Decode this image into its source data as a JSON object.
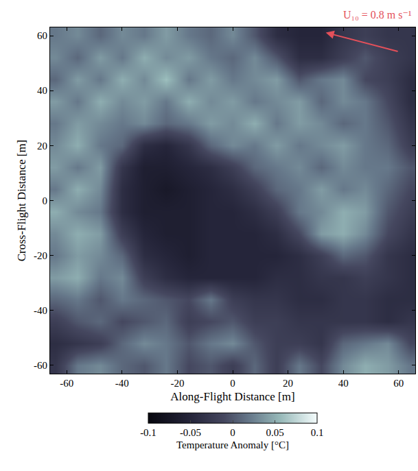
{
  "chart_data": {
    "type": "heatmap",
    "x_label": "Along-Flight Distance [m]",
    "y_label": "Cross-Flight Distance [m]",
    "annotation": "U₁₀ = 0.8 m s⁻¹",
    "annotation_color": "#e4505a",
    "xlim": [
      -66,
      66
    ],
    "ylim": [
      -63,
      63
    ],
    "xticks": [
      -60,
      -40,
      -20,
      0,
      20,
      40,
      60
    ],
    "yticks": [
      -60,
      -40,
      -20,
      0,
      20,
      40,
      60
    ],
    "x": [
      -64,
      -56,
      -48,
      -40,
      -32,
      -24,
      -16,
      -8,
      0,
      8,
      16,
      24,
      32,
      40,
      48,
      56,
      64
    ],
    "y": [
      -60,
      -52,
      -44,
      -36,
      -28,
      -20,
      -12,
      -4,
      4,
      12,
      20,
      28,
      36,
      44,
      52,
      60
    ],
    "z": [
      [
        -0.03,
        0.02,
        0.03,
        0.01,
        0.0,
        0.02,
        -0.01,
        0.0,
        -0.02,
        0.01,
        -0.02,
        0.02,
        -0.01,
        0.03,
        0.05,
        0.04,
        0.02
      ],
      [
        -0.04,
        -0.03,
        -0.02,
        0.01,
        0.03,
        0.02,
        0.0,
        0.02,
        0.03,
        0.0,
        -0.02,
        -0.02,
        -0.03,
        0.01,
        0.02,
        0.03,
        -0.01
      ],
      [
        -0.02,
        0.0,
        0.01,
        -0.01,
        0.0,
        0.01,
        -0.02,
        -0.01,
        0.0,
        -0.02,
        -0.02,
        -0.03,
        -0.03,
        -0.03,
        -0.03,
        -0.04,
        -0.03
      ],
      [
        0.01,
        0.02,
        0.0,
        0.02,
        0.01,
        0.0,
        -0.01,
        0.02,
        -0.02,
        -0.03,
        -0.03,
        -0.04,
        -0.04,
        -0.03,
        -0.03,
        -0.04,
        -0.04
      ],
      [
        0.04,
        0.05,
        0.02,
        0.03,
        -0.02,
        -0.04,
        -0.05,
        -0.05,
        -0.05,
        -0.05,
        -0.04,
        -0.04,
        -0.03,
        -0.03,
        -0.02,
        -0.03,
        -0.04
      ],
      [
        0.02,
        0.04,
        0.03,
        0.01,
        -0.04,
        -0.05,
        -0.06,
        -0.05,
        -0.05,
        -0.05,
        -0.05,
        -0.04,
        -0.02,
        0.01,
        0.0,
        -0.03,
        -0.04
      ],
      [
        0.03,
        0.05,
        0.04,
        -0.02,
        -0.05,
        -0.06,
        -0.06,
        -0.05,
        -0.05,
        -0.05,
        -0.04,
        -0.01,
        0.04,
        0.05,
        0.03,
        -0.01,
        -0.03
      ],
      [
        0.05,
        0.03,
        0.02,
        -0.04,
        -0.06,
        -0.06,
        -0.06,
        -0.05,
        -0.05,
        -0.04,
        -0.02,
        0.02,
        0.03,
        0.05,
        0.04,
        0.0,
        -0.02
      ],
      [
        0.02,
        0.05,
        0.03,
        -0.04,
        -0.06,
        -0.07,
        -0.06,
        -0.05,
        -0.04,
        -0.02,
        0.01,
        0.02,
        0.04,
        0.02,
        0.03,
        0.01,
        -0.01
      ],
      [
        0.04,
        0.02,
        0.04,
        -0.03,
        -0.06,
        -0.06,
        -0.05,
        -0.04,
        -0.02,
        0.01,
        0.02,
        0.03,
        0.01,
        0.03,
        0.02,
        0.02,
        0.0
      ],
      [
        0.03,
        0.05,
        0.02,
        0.01,
        -0.04,
        -0.05,
        -0.03,
        0.01,
        0.03,
        0.02,
        0.04,
        0.02,
        0.03,
        0.04,
        0.02,
        0.01,
        -0.02
      ],
      [
        0.02,
        0.04,
        0.03,
        0.02,
        0.03,
        0.01,
        0.02,
        0.04,
        0.03,
        0.05,
        0.02,
        0.04,
        0.03,
        0.01,
        0.02,
        0.0,
        -0.03
      ],
      [
        0.04,
        0.02,
        0.05,
        0.03,
        0.04,
        0.02,
        0.05,
        0.03,
        0.04,
        0.02,
        0.03,
        0.04,
        0.01,
        0.03,
        0.02,
        -0.01,
        -0.04
      ],
      [
        0.01,
        0.04,
        0.02,
        0.05,
        0.03,
        0.06,
        0.02,
        0.04,
        0.02,
        0.03,
        0.04,
        0.0,
        0.02,
        0.03,
        -0.01,
        -0.02,
        -0.04
      ],
      [
        0.03,
        0.01,
        0.04,
        0.02,
        0.05,
        0.03,
        0.04,
        0.02,
        0.01,
        0.03,
        0.0,
        -0.04,
        -0.04,
        -0.02,
        0.0,
        -0.02,
        -0.03
      ],
      [
        0.02,
        0.03,
        0.01,
        0.03,
        0.02,
        0.04,
        0.02,
        0.01,
        0.03,
        0.0,
        -0.04,
        -0.05,
        -0.05,
        -0.03,
        -0.02,
        -0.03,
        -0.03
      ]
    ],
    "colorbar": {
      "title": "Temperature Anomaly [°C]",
      "range": [
        -0.1,
        0.1
      ],
      "ticks": [
        -0.1,
        -0.05,
        0,
        0.05,
        0.1
      ]
    }
  }
}
